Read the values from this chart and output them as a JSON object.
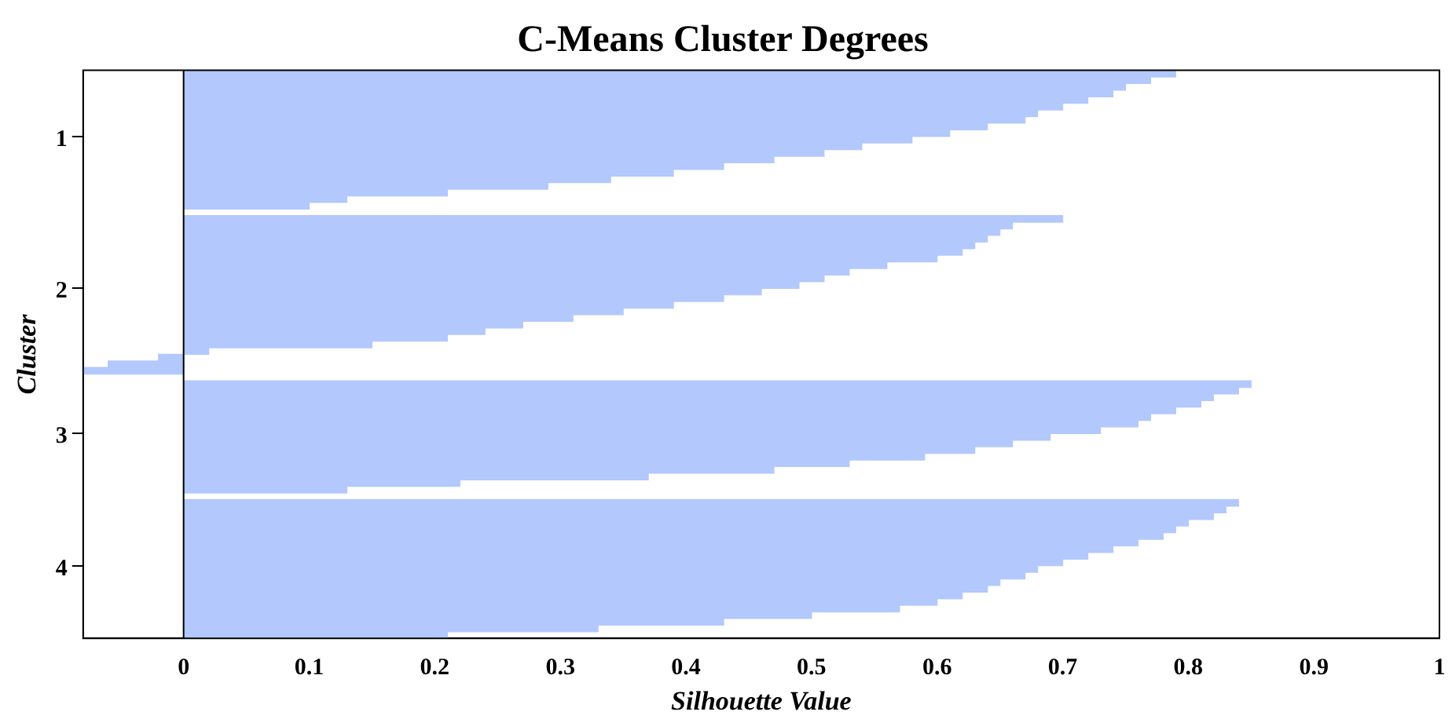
{
  "chart_data": {
    "type": "bar",
    "orientation": "horizontal",
    "title": "C-Means Cluster Degrees",
    "xlabel": "Silhouette Value",
    "ylabel": "Cluster",
    "categories": [
      null,
      null,
      null,
      null,
      null,
      null,
      null,
      null,
      null,
      null,
      "1",
      null,
      null,
      null,
      null,
      null,
      null,
      null,
      null,
      null,
      null,
      null,
      null,
      null,
      null,
      null,
      null,
      null,
      null,
      null,
      null,
      null,
      null,
      "2",
      null,
      null,
      null,
      null,
      null,
      null,
      null,
      null,
      null,
      null,
      null,
      null,
      null,
      null,
      null,
      null,
      null,
      null,
      null,
      null,
      null,
      "3",
      null,
      null,
      null,
      null,
      null,
      null,
      null,
      null,
      null,
      null,
      null,
      null,
      null,
      null,
      null,
      null,
      null,
      null,
      null,
      "4",
      null,
      null,
      null,
      null,
      null,
      null,
      null,
      null,
      null,
      null
    ],
    "series": [
      {
        "color": "#b3c8fc",
        "values": [
          0.79,
          0.77,
          0.75,
          0.74,
          0.72,
          0.7,
          0.68,
          0.67,
          0.64,
          0.61,
          0.58,
          0.54,
          0.51,
          0.47,
          0.43,
          0.39,
          0.34,
          0.29,
          0.21,
          0.13,
          0.1,
          null,
          0.7,
          0.66,
          0.65,
          0.64,
          0.63,
          0.62,
          0.6,
          0.56,
          0.53,
          0.51,
          0.49,
          0.46,
          0.43,
          0.39,
          0.35,
          0.31,
          0.27,
          0.24,
          0.21,
          0.15,
          0.02,
          -0.02,
          -0.06,
          -0.08,
          null,
          0.85,
          0.84,
          0.82,
          0.81,
          0.79,
          0.77,
          0.76,
          0.73,
          0.69,
          0.66,
          0.63,
          0.59,
          0.53,
          0.47,
          0.37,
          0.22,
          0.13,
          null,
          0.84,
          0.83,
          0.82,
          0.8,
          0.79,
          0.78,
          0.76,
          0.74,
          0.72,
          0.7,
          0.68,
          0.67,
          0.65,
          0.64,
          0.62,
          0.6,
          0.57,
          0.5,
          0.43,
          0.33,
          0.21
        ]
      }
    ],
    "xlim": [
      -0.08,
      1
    ],
    "xticks": [
      0,
      0.1,
      0.2,
      0.3,
      0.4,
      0.5,
      0.6,
      0.7,
      0.8,
      0.9,
      1
    ],
    "ref_lines": [
      {
        "axis": "x",
        "value": 0,
        "color": "#000000"
      }
    ],
    "legend": false
  }
}
